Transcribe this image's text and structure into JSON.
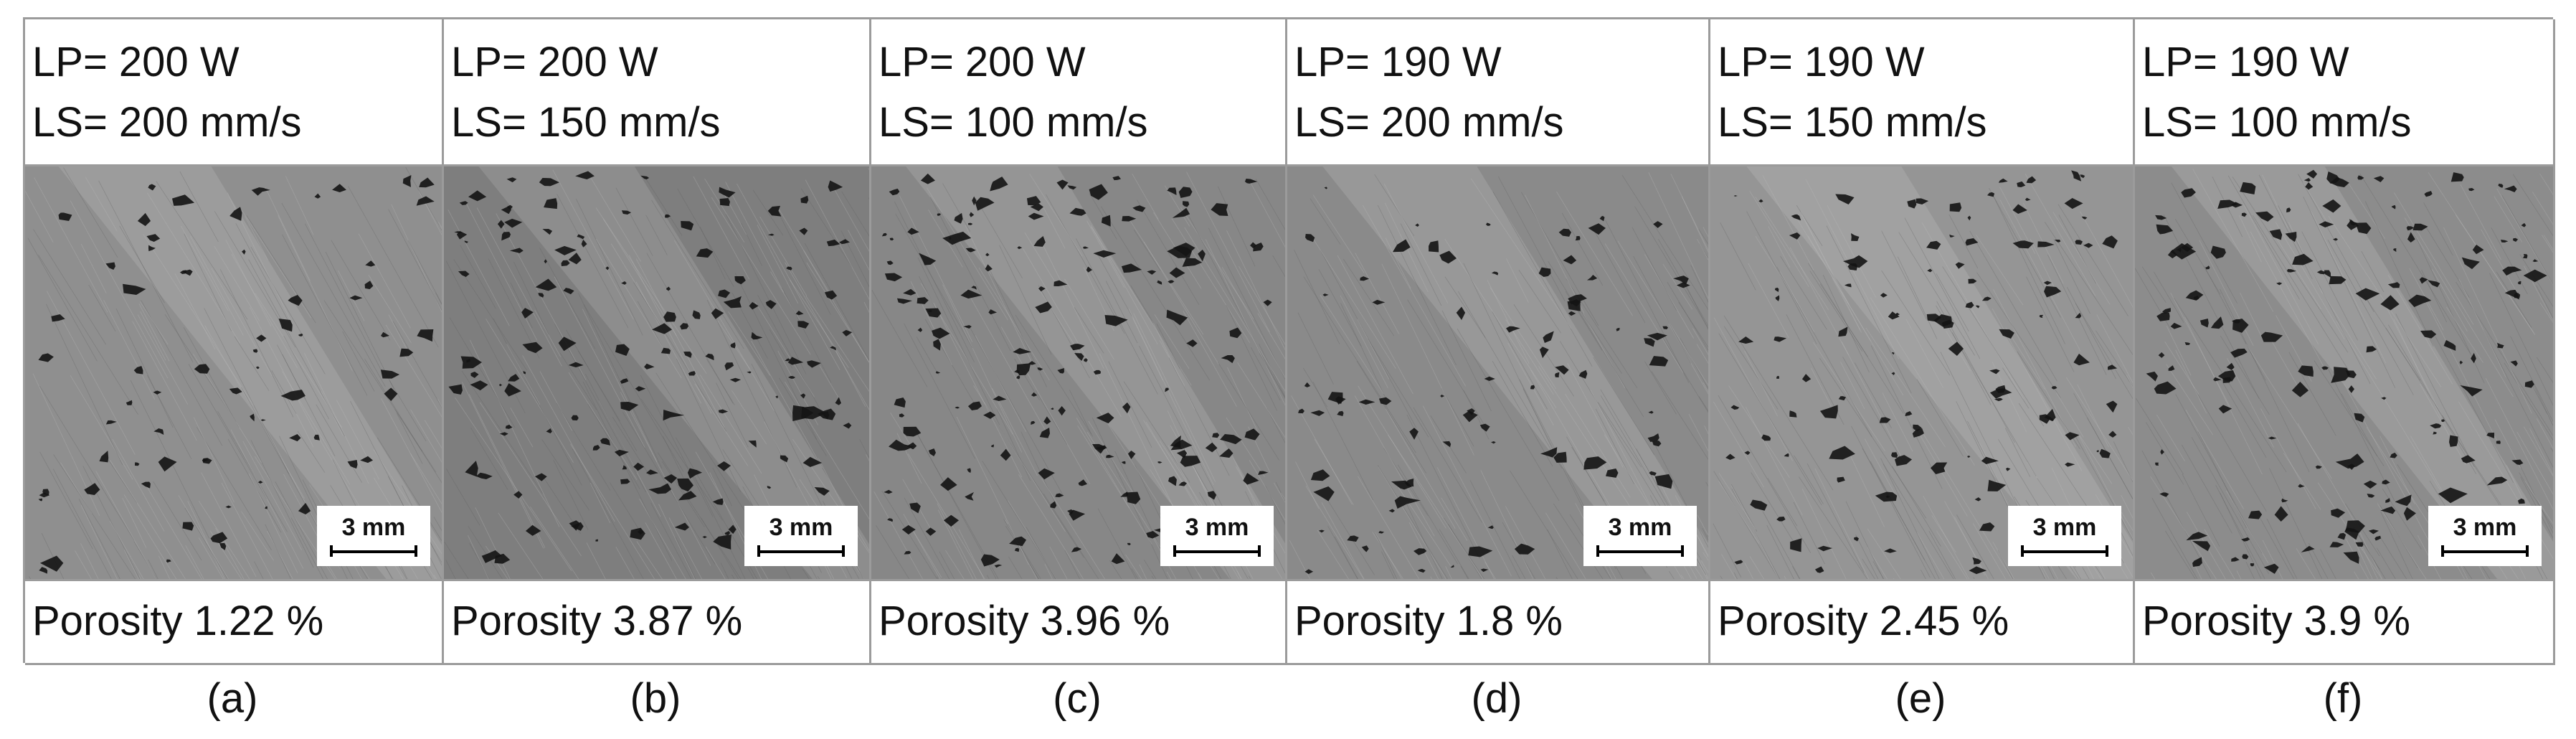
{
  "panels": [
    {
      "laser_power": "LP= 200 W",
      "laser_speed": "LS= 200 mm/s",
      "porosity": "Porosity 1.22 %",
      "caption": "(a)",
      "scale": "3 mm",
      "tone": "#8f8f8f"
    },
    {
      "laser_power": "LP= 200 W",
      "laser_speed": "LS= 150 mm/s",
      "porosity": "Porosity 3.87 %",
      "caption": "(b)",
      "scale": "3 mm",
      "tone": "#7e7e7e"
    },
    {
      "laser_power": "LP= 200 W",
      "laser_speed": "LS= 100 mm/s",
      "porosity": "Porosity 3.96 %",
      "caption": "(c)",
      "scale": "3 mm",
      "tone": "#878787"
    },
    {
      "laser_power": "LP= 190 W",
      "laser_speed": "LS= 200 mm/s",
      "porosity": "Porosity 1.8 %",
      "caption": "(d)",
      "scale": "3 mm",
      "tone": "#8a8a8a"
    },
    {
      "laser_power": "LP= 190 W",
      "laser_speed": "LS= 150 mm/s",
      "porosity": "Porosity 2.45 %",
      "caption": "(e)",
      "scale": "3 mm",
      "tone": "#959595"
    },
    {
      "laser_power": "LP= 190 W",
      "laser_speed": "LS= 100 mm/s",
      "porosity": "Porosity 3.9 %",
      "caption": "(f)",
      "scale": "3 mm",
      "tone": "#8c8c8c"
    }
  ]
}
